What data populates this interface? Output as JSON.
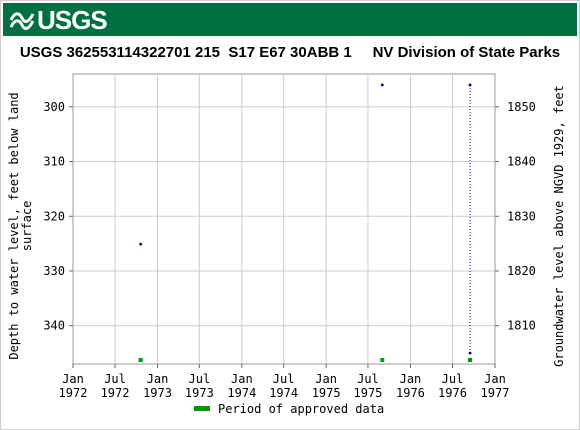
{
  "header": {
    "logo_text": "USGS",
    "brand_color": "#006f41"
  },
  "chart_data": {
    "type": "scatter",
    "title": "USGS 362553114322701 215  S17 E67 30ABB 1     NV Division of State Parks",
    "ylabel_left": "Depth to water level, feet below land surface",
    "ylabel_left_lines": [
      "Depth to water level, feet below land",
      "surface"
    ],
    "ylabel_right": "Groundwater level above NGVD 1929, feet",
    "y_left_range": [
      347,
      294
    ],
    "y_left_ticks": [
      "300",
      "310",
      "320",
      "330",
      "340"
    ],
    "y_left_tick_values": [
      300,
      310,
      320,
      330,
      340
    ],
    "y_right_ticks": [
      "1810",
      "1820",
      "1830",
      "1840",
      "1850"
    ],
    "y_right_tick_values": [
      1810,
      1820,
      1830,
      1840,
      1850
    ],
    "y_right_offset": 2150,
    "x_range": [
      "1972-01-01",
      "1977-01-01"
    ],
    "x_ticks": [
      {
        "date": "1972-01-01",
        "line1": "Jan",
        "line2": "1972"
      },
      {
        "date": "1972-07-01",
        "line1": "Jul",
        "line2": "1972"
      },
      {
        "date": "1973-01-01",
        "line1": "Jan",
        "line2": "1973"
      },
      {
        "date": "1973-07-01",
        "line1": "Jul",
        "line2": "1973"
      },
      {
        "date": "1974-01-01",
        "line1": "Jan",
        "line2": "1974"
      },
      {
        "date": "1974-07-01",
        "line1": "Jul",
        "line2": "1974"
      },
      {
        "date": "1975-01-01",
        "line1": "Jan",
        "line2": "1975"
      },
      {
        "date": "1975-07-01",
        "line1": "Jul",
        "line2": "1975"
      },
      {
        "date": "1976-01-01",
        "line1": "Jan",
        "line2": "1976"
      },
      {
        "date": "1976-07-01",
        "line1": "Jul",
        "line2": "1976"
      },
      {
        "date": "1977-01-01",
        "line1": "Jan",
        "line2": "1977"
      }
    ],
    "series": [
      {
        "points": [
          {
            "date": "1972-10-20",
            "value": 325.1
          },
          {
            "date": "1975-09-01",
            "value": 296.0
          },
          {
            "date": "1976-09-15",
            "value": 296.0
          },
          {
            "date": "1976-09-15",
            "value": 345.0
          }
        ],
        "color": "#00008b"
      }
    ],
    "approved_periods": [
      "1972-10-20",
      "1975-09-01",
      "1976-09-15"
    ],
    "approved_color": "#009900",
    "legend": {
      "label": "Period of approved data",
      "placement": "bottom"
    },
    "grid": true
  }
}
